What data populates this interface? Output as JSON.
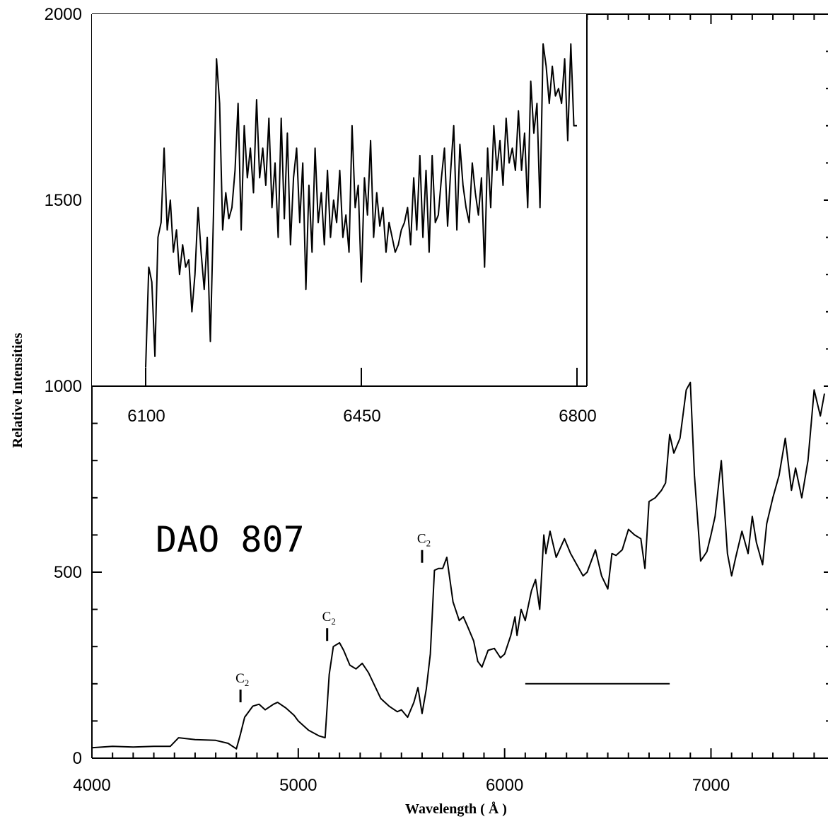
{
  "chart_data": [
    {
      "id": "main",
      "type": "line",
      "title": "DAO 807",
      "xlabel": "Wavelength ( Å  )",
      "ylabel": "Relative Intensities",
      "xlim": [
        4000,
        7550
      ],
      "ylim": [
        0,
        2000
      ],
      "x_ticks": [
        4000,
        5000,
        6000,
        7000
      ],
      "y_ticks": [
        0,
        500,
        1000,
        1500,
        2000
      ],
      "x_minor_step": 100,
      "y_minor_step": 100,
      "grid": false,
      "series": [
        {
          "x": [
            4000,
            4100,
            4200,
            4300,
            4380,
            4420,
            4500,
            4600,
            4660,
            4700,
            4720,
            4740,
            4780,
            4810,
            4840,
            4880,
            4900,
            4940,
            4980,
            5000,
            5050,
            5100,
            5130,
            5150,
            5170,
            5200,
            5220,
            5250,
            5280,
            5310,
            5340,
            5400,
            5440,
            5480,
            5500,
            5530,
            5560,
            5580,
            5600,
            5620,
            5640,
            5660,
            5680,
            5700,
            5720,
            5750,
            5780,
            5800,
            5820,
            5850,
            5870,
            5890,
            5920,
            5950,
            5980,
            6000,
            6030,
            6050,
            6060,
            6080,
            6100,
            6130,
            6150,
            6170,
            6190,
            6200,
            6220,
            6250,
            6290,
            6320,
            6350,
            6380,
            6400,
            6440,
            6470,
            6500,
            6520,
            6540,
            6570,
            6600,
            6630,
            6660,
            6680,
            6700,
            6730,
            6760,
            6780,
            6800,
            6820,
            6850,
            6880,
            6900,
            6920,
            6950,
            6980,
            7000,
            7020,
            7050,
            7080,
            7100,
            7120,
            7150,
            7180,
            7200,
            7220,
            7250,
            7270,
            7300,
            7330,
            7360,
            7390,
            7410,
            7440,
            7470,
            7500,
            7530,
            7550
          ],
          "y": [
            28,
            32,
            30,
            32,
            32,
            55,
            50,
            48,
            40,
            25,
            65,
            110,
            140,
            145,
            130,
            145,
            150,
            135,
            115,
            100,
            75,
            60,
            55,
            225,
            300,
            310,
            290,
            250,
            240,
            255,
            230,
            160,
            140,
            125,
            130,
            110,
            150,
            190,
            120,
            185,
            280,
            505,
            510,
            510,
            540,
            420,
            370,
            380,
            355,
            315,
            260,
            245,
            290,
            295,
            270,
            280,
            330,
            380,
            330,
            400,
            370,
            450,
            480,
            400,
            600,
            550,
            610,
            540,
            590,
            550,
            520,
            490,
            500,
            560,
            490,
            455,
            550,
            545,
            560,
            615,
            600,
            590,
            510,
            690,
            700,
            720,
            740,
            870,
            820,
            860,
            990,
            1010,
            760,
            530,
            555,
            600,
            650,
            800,
            550,
            490,
            540,
            610,
            550,
            650,
            580,
            520,
            630,
            700,
            760,
            860,
            720,
            780,
            700,
            800,
            990,
            920,
            980
          ]
        }
      ],
      "annotations": [
        {
          "text": "C",
          "sub": "2",
          "x": 4720,
          "y": 135
        },
        {
          "text": "C",
          "sub": "2",
          "x": 5140,
          "y": 300
        },
        {
          "text": "C",
          "sub": "2",
          "x": 5600,
          "y": 510
        }
      ],
      "marker_bar": {
        "x": [
          6100,
          6800
        ],
        "y": 200
      }
    },
    {
      "id": "inset",
      "type": "line",
      "xlim": [
        6100,
        6800
      ],
      "ylim": [
        1000,
        2000
      ],
      "x_ticks": [
        6100,
        6450,
        6800
      ],
      "grid": false,
      "series": [
        {
          "x": [
            6100,
            6105,
            6110,
            6115,
            6120,
            6125,
            6130,
            6135,
            6140,
            6145,
            6150,
            6155,
            6160,
            6165,
            6170,
            6175,
            6180,
            6185,
            6190,
            6195,
            6200,
            6205,
            6210,
            6215,
            6220,
            6225,
            6230,
            6235,
            6240,
            6245,
            6250,
            6255,
            6260,
            6265,
            6270,
            6275,
            6280,
            6285,
            6290,
            6295,
            6300,
            6305,
            6310,
            6315,
            6320,
            6325,
            6330,
            6335,
            6340,
            6345,
            6350,
            6355,
            6360,
            6365,
            6370,
            6375,
            6380,
            6385,
            6390,
            6395,
            6400,
            6405,
            6410,
            6415,
            6420,
            6425,
            6430,
            6435,
            6440,
            6445,
            6450,
            6455,
            6460,
            6465,
            6470,
            6475,
            6480,
            6485,
            6490,
            6495,
            6500,
            6505,
            6510,
            6515,
            6520,
            6525,
            6530,
            6535,
            6540,
            6545,
            6550,
            6555,
            6560,
            6565,
            6570,
            6575,
            6580,
            6585,
            6590,
            6595,
            6600,
            6605,
            6610,
            6615,
            6620,
            6625,
            6630,
            6635,
            6640,
            6645,
            6650,
            6655,
            6660,
            6665,
            6670,
            6675,
            6680,
            6685,
            6690,
            6695,
            6700,
            6705,
            6710,
            6715,
            6720,
            6725,
            6730,
            6735,
            6740,
            6745,
            6750,
            6755,
            6760,
            6765,
            6770,
            6775,
            6780,
            6785,
            6790,
            6795,
            6800
          ],
          "y": [
            1050,
            1320,
            1280,
            1080,
            1400,
            1440,
            1640,
            1420,
            1500,
            1360,
            1420,
            1300,
            1380,
            1320,
            1340,
            1200,
            1300,
            1480,
            1360,
            1260,
            1400,
            1120,
            1460,
            1880,
            1760,
            1420,
            1520,
            1450,
            1480,
            1580,
            1760,
            1420,
            1700,
            1560,
            1640,
            1520,
            1770,
            1560,
            1640,
            1540,
            1720,
            1480,
            1600,
            1400,
            1720,
            1450,
            1680,
            1380,
            1560,
            1640,
            1440,
            1600,
            1260,
            1540,
            1360,
            1640,
            1440,
            1520,
            1380,
            1580,
            1400,
            1500,
            1440,
            1580,
            1400,
            1460,
            1360,
            1700,
            1480,
            1540,
            1280,
            1560,
            1460,
            1660,
            1400,
            1520,
            1430,
            1480,
            1360,
            1440,
            1400,
            1360,
            1380,
            1420,
            1440,
            1480,
            1380,
            1560,
            1420,
            1620,
            1400,
            1580,
            1360,
            1620,
            1440,
            1460,
            1560,
            1640,
            1430,
            1580,
            1700,
            1420,
            1650,
            1540,
            1480,
            1440,
            1600,
            1520,
            1460,
            1560,
            1320,
            1640,
            1480,
            1700,
            1580,
            1660,
            1540,
            1720,
            1600,
            1640,
            1580,
            1740,
            1580,
            1680,
            1480,
            1820,
            1680,
            1760,
            1480,
            1920,
            1860,
            1760,
            1860,
            1780,
            1800,
            1760,
            1880,
            1660,
            1920,
            1700,
            1700
          ]
        }
      ]
    }
  ]
}
